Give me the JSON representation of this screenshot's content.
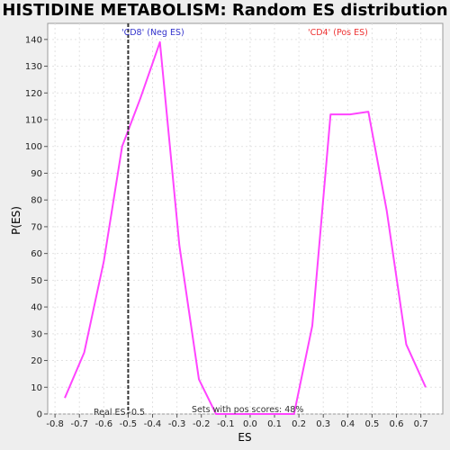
{
  "chart_data": {
    "type": "line",
    "title": "HISTIDINE METABOLISM: Random ES distribution",
    "xlabel": "ES",
    "ylabel": "P(ES)",
    "xlim": [
      -0.83,
      0.79
    ],
    "ylim": [
      0,
      146
    ],
    "xticks": [
      -0.8,
      -0.7,
      -0.6,
      -0.5,
      -0.4,
      -0.3,
      -0.2,
      -0.1,
      0.0,
      0.1,
      0.2,
      0.3,
      0.4,
      0.5,
      0.6,
      0.7
    ],
    "yticks": [
      0,
      10,
      20,
      30,
      40,
      50,
      60,
      70,
      80,
      90,
      100,
      110,
      120,
      130,
      140
    ],
    "grid": true,
    "series": [
      {
        "color": "#ff44ff",
        "x": [
          -0.76,
          -0.68,
          -0.6,
          -0.525,
          -0.45,
          -0.37,
          -0.29,
          -0.21,
          -0.14,
          0.18,
          0.255,
          0.33,
          0.41,
          0.485,
          0.56,
          0.64,
          0.72
        ],
        "y": [
          6,
          23,
          57,
          100,
          118,
          139,
          63,
          13,
          0,
          0,
          33,
          112,
          112,
          113,
          76,
          26,
          10
        ]
      }
    ],
    "real_es": {
      "value": -0.5,
      "label": "Real ES -0.5"
    },
    "annotations": [
      {
        "text": "'CD8' (Neg ES)",
        "color": "#3333cc"
      },
      {
        "text": "'CD4' (Pos ES)",
        "color": "#ee3333"
      },
      {
        "text": "Sets with pos scores: 48%",
        "color": "#333333"
      }
    ]
  }
}
